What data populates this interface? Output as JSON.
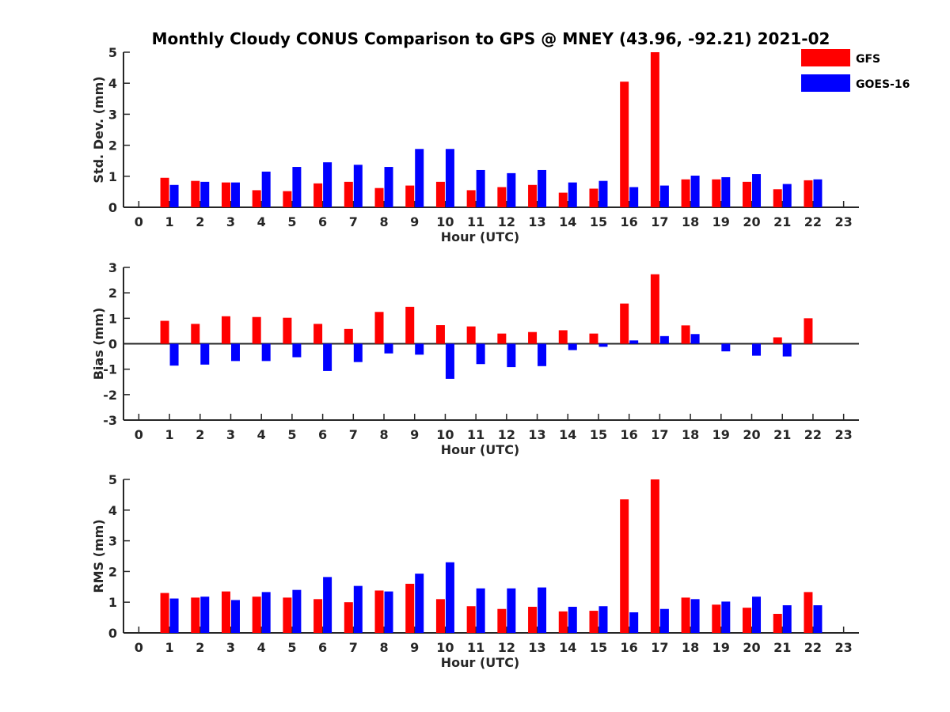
{
  "figure_title": "Monthly Cloudy CONUS Comparison to GPS @ MNEY (43.96, -92.21) 2021-02",
  "legend": [
    {
      "label": "GFS",
      "color": "#ff0000"
    },
    {
      "label": "GOES-16",
      "color": "#0000ff"
    }
  ],
  "chart_data": [
    {
      "type": "bar",
      "title": "Monthly Cloudy CONUS Comparison to GPS @ MNEY (43.96, -92.21) 2021-02",
      "xlabel": "Hour (UTC)",
      "ylabel": "Std. Dev. (mm)",
      "xlim": [
        -0.5,
        23.5
      ],
      "ylim": [
        0,
        5
      ],
      "yticks": [
        0,
        1,
        2,
        3,
        4,
        5
      ],
      "categories": [
        "0",
        "1",
        "2",
        "3",
        "4",
        "5",
        "6",
        "7",
        "8",
        "9",
        "10",
        "11",
        "12",
        "13",
        "14",
        "15",
        "16",
        "17",
        "18",
        "19",
        "20",
        "21",
        "22",
        "23"
      ],
      "series": [
        {
          "name": "GFS",
          "color": "#ff0000",
          "values": [
            null,
            0.95,
            0.85,
            0.8,
            0.55,
            0.52,
            0.77,
            0.82,
            0.62,
            0.7,
            0.82,
            0.55,
            0.65,
            0.72,
            0.47,
            0.6,
            4.05,
            5.0,
            0.9,
            0.9,
            0.82,
            0.58,
            0.87,
            null
          ]
        },
        {
          "name": "GOES-16",
          "color": "#0000ff",
          "values": [
            null,
            0.72,
            0.82,
            0.8,
            1.15,
            1.3,
            1.45,
            1.37,
            1.3,
            1.88,
            1.88,
            1.2,
            1.1,
            1.2,
            0.8,
            0.85,
            0.65,
            0.7,
            1.02,
            0.97,
            1.07,
            0.75,
            0.9,
            null
          ]
        }
      ]
    },
    {
      "type": "bar",
      "title": "",
      "xlabel": "Hour (UTC)",
      "ylabel": "Bias (mm)",
      "xlim": [
        -0.5,
        23.5
      ],
      "ylim": [
        -3,
        3
      ],
      "yticks": [
        -3,
        -2,
        -1,
        0,
        1,
        2,
        3
      ],
      "zero_line": true,
      "categories": [
        "0",
        "1",
        "2",
        "3",
        "4",
        "5",
        "6",
        "7",
        "8",
        "9",
        "10",
        "11",
        "12",
        "13",
        "14",
        "15",
        "16",
        "17",
        "18",
        "19",
        "20",
        "21",
        "22",
        "23"
      ],
      "series": [
        {
          "name": "GFS",
          "color": "#ff0000",
          "values": [
            null,
            0.9,
            0.78,
            1.08,
            1.05,
            1.02,
            0.78,
            0.58,
            1.25,
            1.45,
            0.73,
            0.68,
            0.4,
            0.46,
            0.53,
            0.4,
            1.58,
            2.73,
            0.72,
            null,
            null,
            0.25,
            1.0,
            null
          ]
        },
        {
          "name": "GOES-16",
          "color": "#0000ff",
          "values": [
            null,
            -0.86,
            -0.82,
            -0.68,
            -0.68,
            -0.53,
            -1.07,
            -0.72,
            -0.38,
            -0.43,
            -1.38,
            -0.8,
            -0.92,
            -0.88,
            -0.25,
            -0.12,
            0.13,
            0.3,
            0.38,
            -0.3,
            -0.47,
            -0.5,
            null,
            null
          ]
        }
      ]
    },
    {
      "type": "bar",
      "title": "",
      "xlabel": "Hour (UTC)",
      "ylabel": "RMS (mm)",
      "xlim": [
        -0.5,
        23.5
      ],
      "ylim": [
        0,
        5
      ],
      "yticks": [
        0,
        1,
        2,
        3,
        4,
        5
      ],
      "categories": [
        "0",
        "1",
        "2",
        "3",
        "4",
        "5",
        "6",
        "7",
        "8",
        "9",
        "10",
        "11",
        "12",
        "13",
        "14",
        "15",
        "16",
        "17",
        "18",
        "19",
        "20",
        "21",
        "22",
        "23"
      ],
      "series": [
        {
          "name": "GFS",
          "color": "#ff0000",
          "values": [
            null,
            1.3,
            1.15,
            1.35,
            1.18,
            1.15,
            1.1,
            1.0,
            1.38,
            1.6,
            1.1,
            0.87,
            0.78,
            0.85,
            0.7,
            0.72,
            4.35,
            5.0,
            1.15,
            0.92,
            0.82,
            0.62,
            1.33,
            null
          ]
        },
        {
          "name": "GOES-16",
          "color": "#0000ff",
          "values": [
            null,
            1.12,
            1.18,
            1.07,
            1.33,
            1.4,
            1.82,
            1.53,
            1.35,
            1.93,
            2.3,
            1.45,
            1.45,
            1.48,
            0.85,
            0.87,
            0.67,
            0.78,
            1.1,
            1.02,
            1.18,
            0.9,
            0.9,
            null
          ]
        }
      ]
    }
  ]
}
